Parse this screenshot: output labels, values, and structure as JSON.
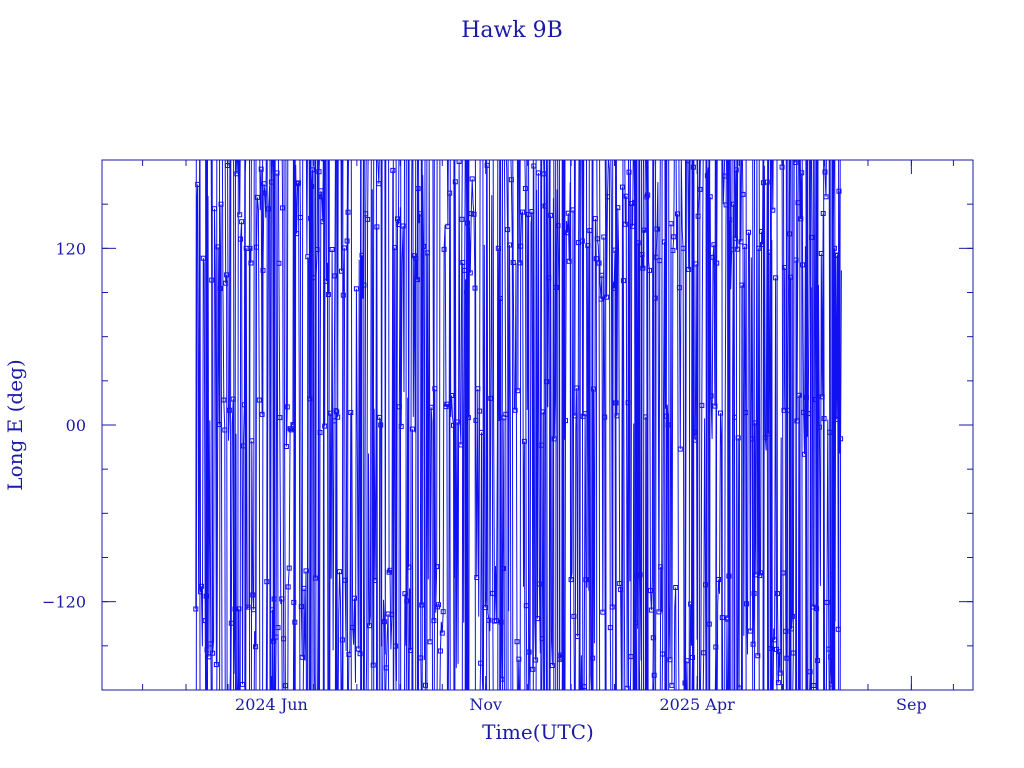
{
  "chart_data": {
    "type": "line",
    "title": "Hawk 9B",
    "xlabel": "Time(UTC)",
    "ylabel": "Long E (deg)",
    "x_type": "time",
    "xlim": [
      "2024-02-01",
      "2025-10-15"
    ],
    "ylim": [
      -180,
      180
    ],
    "x_ticks": [
      {
        "date": "2024-06-01",
        "label": "2024 Jun"
      },
      {
        "date": "2024-11-01",
        "label": "Nov"
      },
      {
        "date": "2025-04-01",
        "label": "2025 Apr"
      },
      {
        "date": "2025-09-01",
        "label": "Sep"
      }
    ],
    "y_ticks": [
      {
        "value": 120,
        "label": "120"
      },
      {
        "value": 0,
        "label": "00"
      },
      {
        "value": -120,
        "label": "−120"
      }
    ],
    "y_minor_step": 30,
    "x_minor_step_months": 1,
    "grid": false,
    "legend": "none",
    "series": [
      {
        "x_start": "2024-04-08",
        "x_end": "2025-07-13",
        "marker": "square",
        "values_note": "Wrapped longitude track; dense alternation between bands near 120, 0 and -120 deg",
        "x": [
          "2024-04-08",
          "2024-04-14",
          "2024-04-20",
          "2024-04-26",
          "2024-05-02",
          "2024-05-08",
          "2024-05-14",
          "2024-05-20",
          "2024-05-26",
          "2024-06-01",
          "2024-06-07",
          "2024-06-13",
          "2024-06-19",
          "2024-06-25",
          "2024-07-01",
          "2024-07-07",
          "2024-07-13",
          "2024-07-19",
          "2024-07-25",
          "2024-07-31",
          "2024-08-06",
          "2024-08-12",
          "2024-08-18",
          "2024-08-24",
          "2024-08-30",
          "2024-09-05",
          "2024-09-11",
          "2024-09-17",
          "2024-09-23",
          "2024-09-29",
          "2024-10-05",
          "2024-10-11",
          "2024-10-17",
          "2024-10-23",
          "2024-10-29",
          "2024-11-04",
          "2024-11-10",
          "2024-11-16",
          "2024-11-22",
          "2024-11-28",
          "2024-12-04",
          "2024-12-10",
          "2024-12-16",
          "2024-12-22",
          "2024-12-28",
          "2025-01-03",
          "2025-01-09",
          "2025-01-15",
          "2025-01-21",
          "2025-01-27",
          "2025-02-02",
          "2025-02-08",
          "2025-02-14",
          "2025-02-20",
          "2025-02-26",
          "2025-03-04",
          "2025-03-10",
          "2025-03-16",
          "2025-03-22",
          "2025-03-28",
          "2025-04-03",
          "2025-04-09",
          "2025-04-15",
          "2025-04-21",
          "2025-04-27",
          "2025-05-03",
          "2025-05-09",
          "2025-05-15",
          "2025-05-21",
          "2025-05-27",
          "2025-06-02",
          "2025-06-08",
          "2025-06-14",
          "2025-06-20",
          "2025-06-26",
          "2025-07-02",
          "2025-07-08",
          "2025-07-13"
        ],
        "y": [
          -125,
          110,
          -155,
          150,
          10,
          -170,
          120,
          -140,
          105,
          165,
          5,
          -110,
          130,
          -160,
          100,
          155,
          8,
          -130,
          125,
          -175,
          95,
          160,
          0,
          -100,
          140,
          -150,
          115,
          170,
          12,
          -120,
          135,
          -165,
          105,
          150,
          -5,
          -140,
          120,
          175,
          10,
          -110,
          145,
          -155,
          100,
          160,
          3,
          -130,
          125,
          -170,
          110,
          155,
          15,
          -115,
          135,
          -160,
          105,
          165,
          6,
          -125,
          120,
          -150,
          160,
          175,
          110,
          -8,
          150,
          95,
          -140,
          120,
          165,
          100,
          10,
          -130,
          140,
          105,
          -160,
          155,
          120,
          105
        ]
      }
    ]
  }
}
